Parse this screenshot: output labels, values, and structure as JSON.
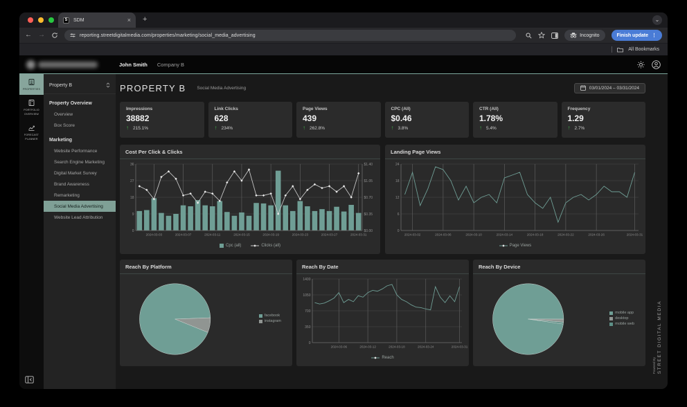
{
  "browser": {
    "tab_title": "SDM",
    "favicon_letter": "S",
    "url": "reporting.streetdigitalmedia.com/properties/marketing/social_media_advertising",
    "incognito_label": "Incognito",
    "update_button_label": "Finish update",
    "all_bookmarks_label": "All Bookmarks"
  },
  "header": {
    "user_name": "John Smith",
    "company_name": "Company B"
  },
  "nav_rail": {
    "items": [
      {
        "label": "PROPERTIES",
        "selected": true
      },
      {
        "label": "PORTFOLIO OVERVIEW",
        "selected": false
      },
      {
        "label": "FORECAST PLANNER",
        "selected": false
      }
    ]
  },
  "sidebar": {
    "property_selector": "Property B",
    "sections": [
      {
        "title": "Property Overview",
        "items": [
          "Overview",
          "Box Score"
        ]
      },
      {
        "title": "Marketing",
        "items": [
          "Website Performance",
          "Search Engine Marketing",
          "Digital Market Survey",
          "Brand Awareness",
          "Remarketing",
          "Social Media Advertising",
          "Website Lead Attribution"
        ]
      }
    ],
    "selected_item": "Social Media Advertising"
  },
  "page": {
    "title": "PROPERTY B",
    "subtitle": "Social Media Advertising",
    "date_range": "03/01/2024 – 03/31/2024",
    "powered_by": "Powered By",
    "brand_vertical": "STREET DIGITAL MEDIA"
  },
  "kpis": [
    {
      "label": "Impressions",
      "value": "38882",
      "delta": "215.1%"
    },
    {
      "label": "Link Clicks",
      "value": "628",
      "delta": "234%"
    },
    {
      "label": "Page Views",
      "value": "439",
      "delta": "262.8%"
    },
    {
      "label": "CPC (All)",
      "value": "$0.46",
      "delta": "3.8%"
    },
    {
      "label": "CTR (All)",
      "value": "1.78%",
      "delta": "5.4%"
    },
    {
      "label": "Frequency",
      "value": "1.29",
      "delta": "2.7%"
    }
  ],
  "colors": {
    "teal": "#6f9e95",
    "accent_line": "#7da79d",
    "gray_slice": "#909592",
    "dark_teal": "#5d8f86",
    "line_gray": "#c4c4c4",
    "green_up": "#43b04a",
    "update_blue": "#4a7cd6"
  },
  "chart_data": [
    {
      "type": "bar",
      "title": "Cost Per Click & Clicks",
      "x_tick_positions": [
        2,
        6,
        10,
        14,
        18,
        22,
        26,
        30
      ],
      "x_tick_labels": [
        "2024-03-03",
        "2024-03-07",
        "2024-03-11",
        "2024-03-15",
        "2024-03-19",
        "2024-03-23",
        "2024-03-27",
        "2024-03-31"
      ],
      "left_axis": {
        "ticks": [
          0,
          9,
          18,
          27,
          36
        ]
      },
      "right_axis": {
        "ticks": [
          0,
          0.35,
          0.7,
          1.05,
          1.4
        ],
        "prefix": "$"
      },
      "legend_position": "bottom",
      "series": [
        {
          "name": "Cpc (all)",
          "type": "bar",
          "axis": "right",
          "color": "#6f9e95",
          "values": [
            0.41,
            0.43,
            0.68,
            0.37,
            0.31,
            0.35,
            0.53,
            0.51,
            0.64,
            0.53,
            0.51,
            0.62,
            0.39,
            0.31,
            0.38,
            0.31,
            0.58,
            0.57,
            0.53,
            1.26,
            0.53,
            0.41,
            0.62,
            0.51,
            0.41,
            0.45,
            0.41,
            0.5,
            0.4,
            0.54,
            0.37
          ]
        },
        {
          "name": "Clicks (all)",
          "type": "line",
          "axis": "left",
          "color": "#c4c4c4",
          "markers": true,
          "values": [
            24,
            22,
            17,
            29,
            32,
            28,
            19,
            20,
            15,
            21,
            20,
            16,
            26,
            32,
            27,
            33,
            19,
            19,
            20,
            9,
            19,
            24,
            17,
            22,
            25,
            23,
            24,
            21,
            24,
            18,
            31
          ]
        }
      ]
    },
    {
      "type": "line",
      "title": "Landing Page Views",
      "x_tick_positions": [
        1,
        5,
        9,
        13,
        17,
        21,
        25,
        30
      ],
      "x_tick_labels": [
        "2024-03-02",
        "2024-03-06",
        "2024-03-10",
        "2024-03-14",
        "2024-03-18",
        "2024-03-22",
        "2024-03-26",
        "2024-03-31"
      ],
      "left_axis": {
        "ticks": [
          0,
          6,
          12,
          18,
          24
        ]
      },
      "legend_position": "bottom",
      "series": [
        {
          "name": "Page Views",
          "type": "line",
          "axis": "left",
          "color": "#6f9e95",
          "markers": false,
          "values": [
            13,
            21,
            9,
            15,
            23,
            22,
            18,
            11,
            16,
            10,
            12,
            13,
            10,
            19,
            20,
            21,
            13,
            10,
            8,
            12,
            3,
            10,
            12,
            13,
            11,
            13,
            16,
            14,
            14,
            12,
            21
          ]
        }
      ]
    },
    {
      "type": "pie",
      "title": "Reach By Platform",
      "labels": [
        "facebook",
        "instagram"
      ],
      "values": [
        93.3,
        6.7
      ],
      "colors": [
        "#6f9e95",
        "#909592"
      ],
      "start_deg": 22,
      "legend_position": "right"
    },
    {
      "type": "line",
      "title": "Reach By Date",
      "x_tick_positions": [
        5,
        11,
        17,
        23,
        30
      ],
      "x_tick_labels": [
        "2024-03-06",
        "2024-03-12",
        "2024-03-18",
        "2024-03-24",
        "2024-03-31"
      ],
      "left_axis": {
        "ticks": [
          0,
          350,
          700,
          1050,
          1400
        ]
      },
      "legend_position": "bottom",
      "series": [
        {
          "name": "Reach",
          "type": "line",
          "axis": "left",
          "color": "#6f9e95",
          "markers": false,
          "values": [
            880,
            850,
            870,
            920,
            980,
            1100,
            880,
            950,
            900,
            1030,
            1000,
            1100,
            1150,
            1130,
            1180,
            1250,
            1280,
            1050,
            950,
            900,
            830,
            780,
            770,
            740,
            720,
            1230,
            1000,
            880,
            1030,
            900,
            1230
          ]
        }
      ]
    },
    {
      "type": "pie",
      "title": "Reach By Device",
      "labels": [
        "mobile app",
        "desktop",
        "mobile web"
      ],
      "values": [
        97.8,
        1.4,
        0.8
      ],
      "colors": [
        "#6f9e95",
        "#909592",
        "#5d8f86"
      ],
      "start_deg": 8,
      "legend_position": "right"
    }
  ]
}
